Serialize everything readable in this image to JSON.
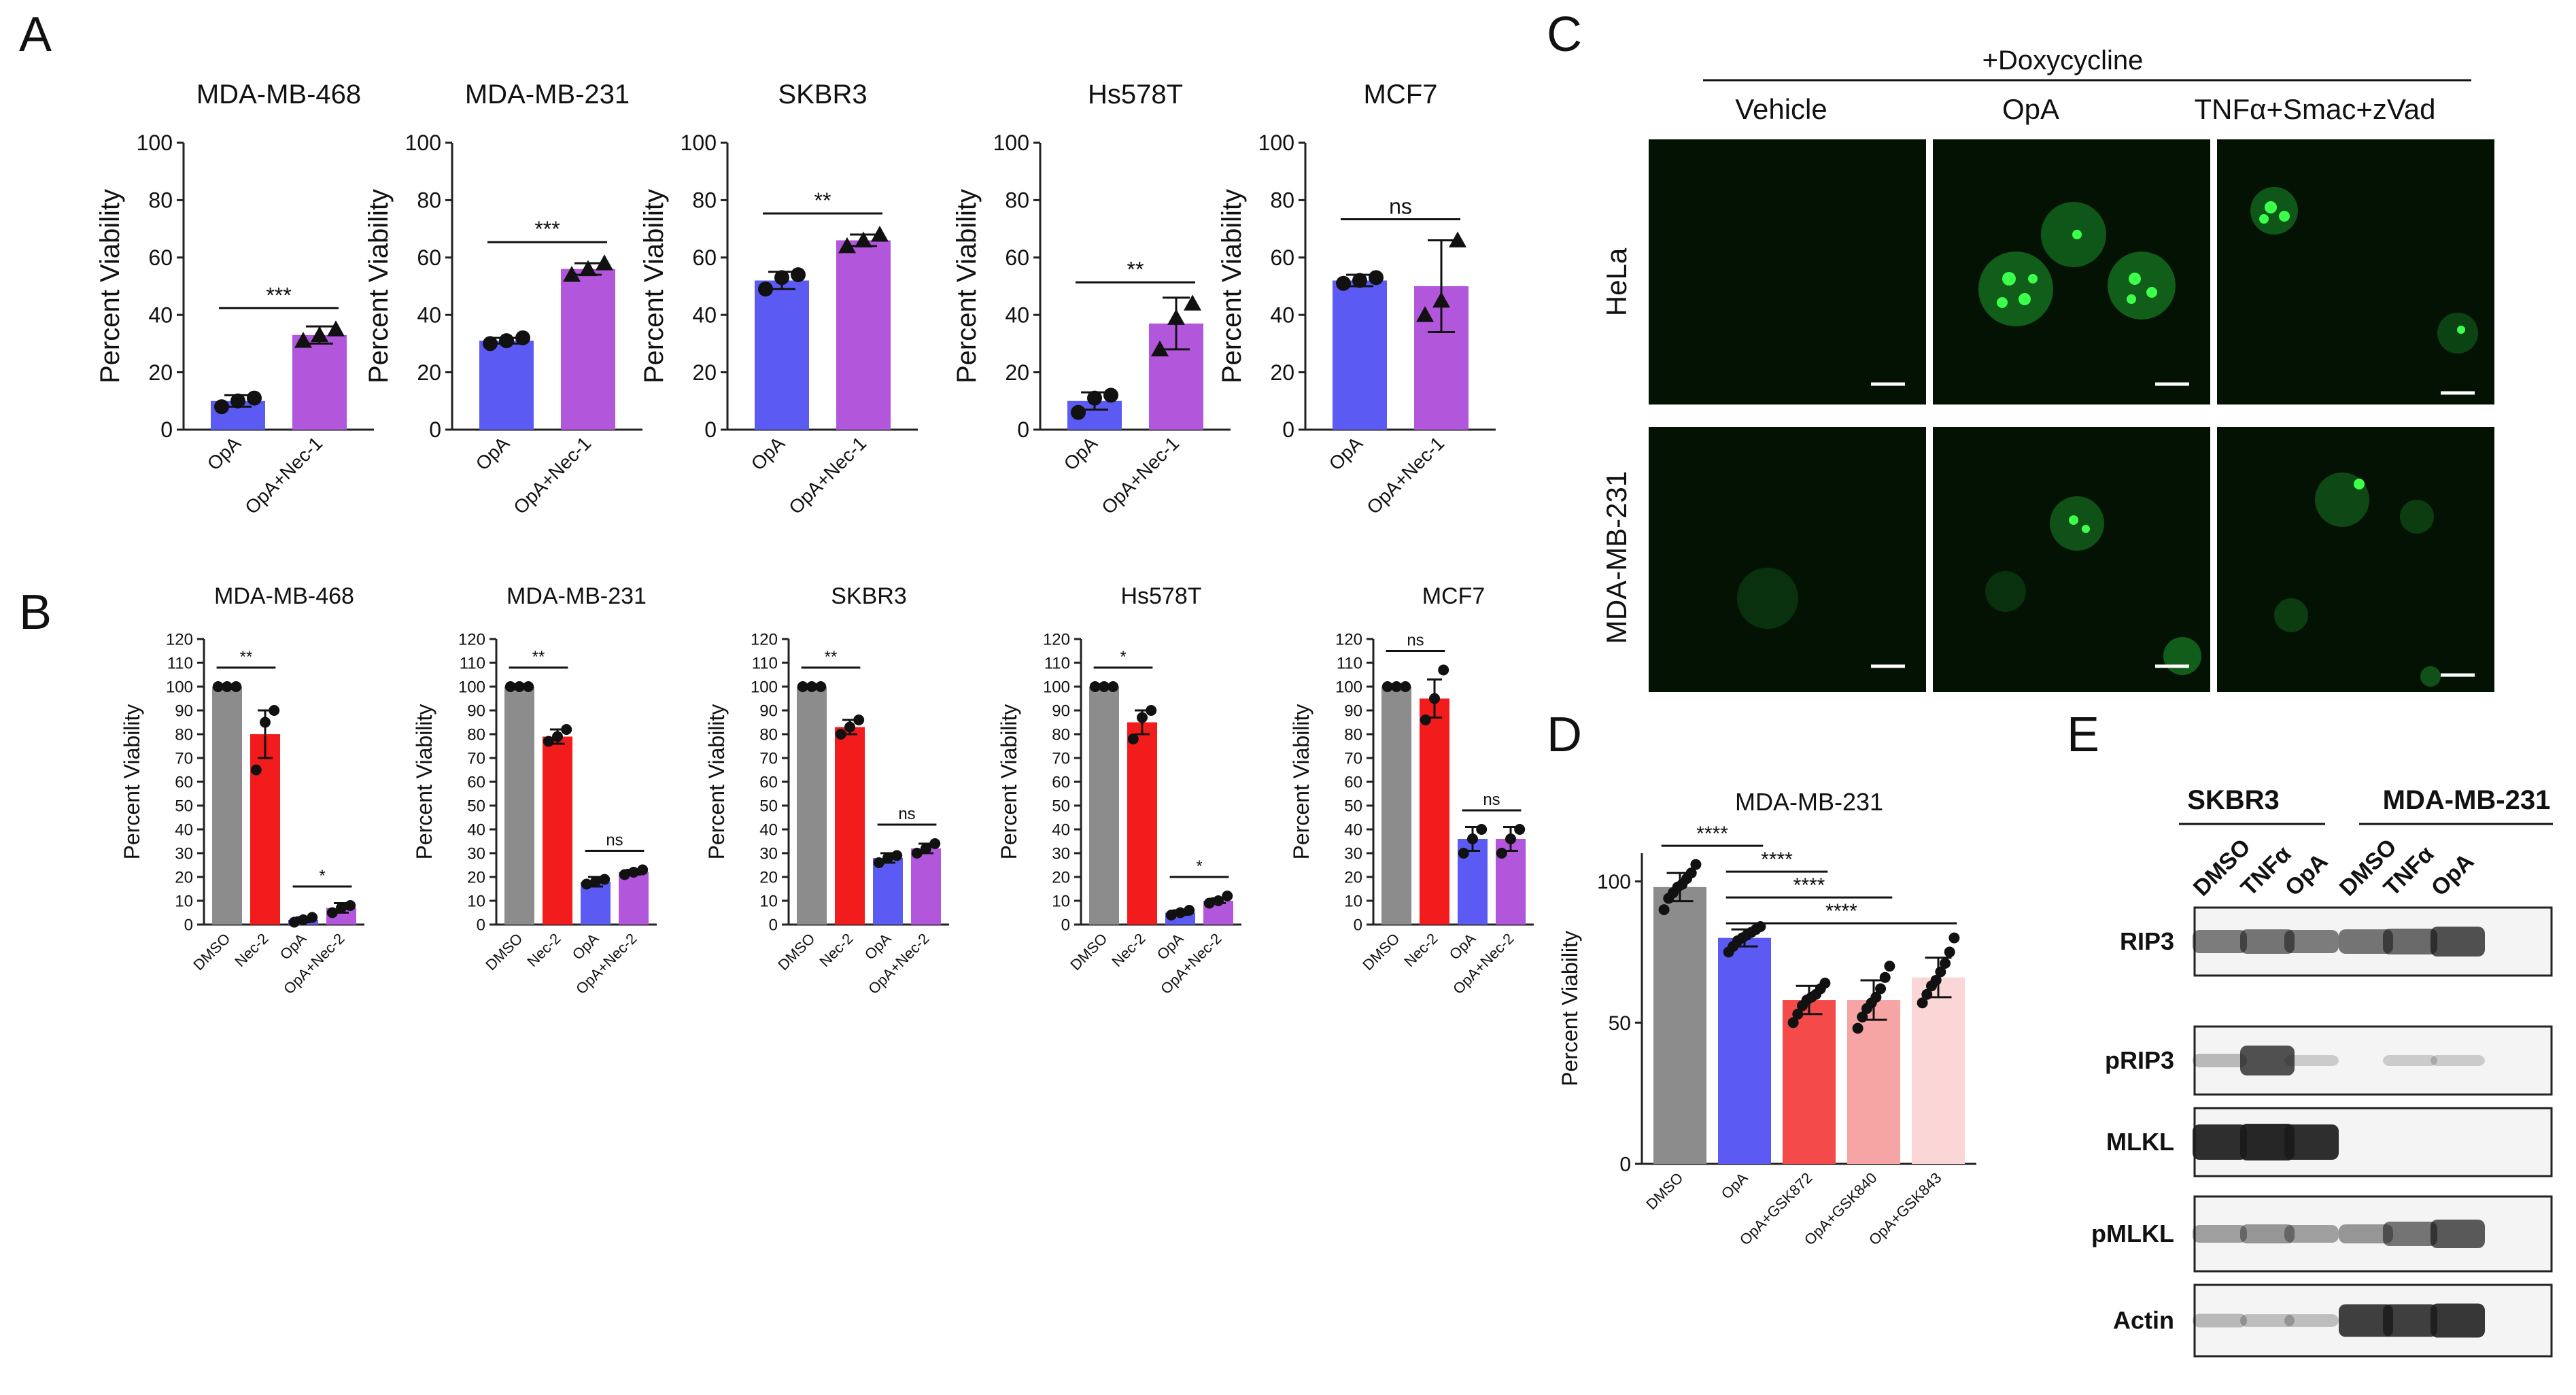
{
  "colors": {
    "gray": "#8c8c8c",
    "blue": "#5b5bf4",
    "purple": "#b257dc",
    "red": "#f21c1c",
    "red2": "#f54a4a",
    "pink": "#f7a4a4",
    "lightpink": "#fbd6d6",
    "green": "#1fd43a"
  },
  "panel_letters": [
    "A",
    "B",
    "C",
    "D",
    "E"
  ],
  "chart_data": [
    {
      "panel": "A",
      "type": "bar",
      "title": "MDA-MB-468",
      "ylabel": "Percent Viability",
      "categories": [
        "OpA",
        "OpA+Nec-1"
      ],
      "values": [
        10,
        33
      ],
      "errors": [
        2,
        3
      ],
      "points": [
        [
          8,
          10,
          11
        ],
        [
          31,
          33,
          35
        ]
      ],
      "ylim": [
        0,
        100
      ],
      "yticks": [
        0,
        20,
        40,
        60,
        80,
        100
      ],
      "sig": [
        "***"
      ],
      "pairs": [
        [
          0,
          1
        ]
      ],
      "colors": [
        "blue",
        "purple"
      ],
      "markers": [
        "circle",
        "triangle"
      ]
    },
    {
      "panel": "A",
      "type": "bar",
      "title": "MDA-MB-231",
      "ylabel": "Percent Viability",
      "categories": [
        "OpA",
        "OpA+Nec-1"
      ],
      "values": [
        31,
        56
      ],
      "errors": [
        1,
        2
      ],
      "points": [
        [
          30,
          31,
          32
        ],
        [
          54,
          56,
          58
        ]
      ],
      "ylim": [
        0,
        100
      ],
      "yticks": [
        0,
        20,
        40,
        60,
        80,
        100
      ],
      "sig": [
        "***"
      ],
      "pairs": [
        [
          0,
          1
        ]
      ],
      "colors": [
        "blue",
        "purple"
      ],
      "markers": [
        "circle",
        "triangle"
      ]
    },
    {
      "panel": "A",
      "type": "bar",
      "title": "SKBR3",
      "ylabel": "Percent Viability",
      "categories": [
        "OpA",
        "OpA+Nec-1"
      ],
      "values": [
        52,
        66
      ],
      "errors": [
        3,
        2
      ],
      "points": [
        [
          49,
          53,
          54
        ],
        [
          64,
          66,
          68
        ]
      ],
      "ylim": [
        0,
        100
      ],
      "yticks": [
        0,
        20,
        40,
        60,
        80,
        100
      ],
      "sig": [
        "**"
      ],
      "pairs": [
        [
          0,
          1
        ]
      ],
      "colors": [
        "blue",
        "purple"
      ],
      "markers": [
        "circle",
        "triangle"
      ]
    },
    {
      "panel": "A",
      "type": "bar",
      "title": "Hs578T",
      "ylabel": "Percent Viability",
      "categories": [
        "OpA",
        "OpA+Nec-1"
      ],
      "values": [
        10,
        37
      ],
      "errors": [
        3,
        9
      ],
      "points": [
        [
          6,
          11,
          12
        ],
        [
          28,
          39,
          44
        ]
      ],
      "ylim": [
        0,
        100
      ],
      "yticks": [
        0,
        20,
        40,
        60,
        80,
        100
      ],
      "sig": [
        "**"
      ],
      "pairs": [
        [
          0,
          1
        ]
      ],
      "colors": [
        "blue",
        "purple"
      ],
      "markers": [
        "circle",
        "triangle"
      ]
    },
    {
      "panel": "A",
      "type": "bar",
      "title": "MCF7",
      "ylabel": "Percent Viability",
      "categories": [
        "OpA",
        "OpA+Nec-1"
      ],
      "values": [
        52,
        50
      ],
      "errors": [
        2,
        16
      ],
      "points": [
        [
          51,
          52,
          53
        ],
        [
          40,
          45,
          66
        ]
      ],
      "ylim": [
        0,
        100
      ],
      "yticks": [
        0,
        20,
        40,
        60,
        80,
        100
      ],
      "sig": [
        "ns"
      ],
      "pairs": [
        [
          0,
          1
        ]
      ],
      "colors": [
        "blue",
        "purple"
      ],
      "markers": [
        "circle",
        "triangle"
      ]
    },
    {
      "panel": "B",
      "type": "bar",
      "title": "MDA-MB-468",
      "ylabel": "Percent Viability",
      "categories": [
        "DMSO",
        "Nec-2",
        "OpA",
        "OpA+Nec-2"
      ],
      "values": [
        100,
        80,
        2,
        7
      ],
      "errors": [
        0,
        10,
        1,
        2
      ],
      "points": [
        [
          100,
          100,
          100
        ],
        [
          65,
          85,
          90
        ],
        [
          1,
          2,
          3
        ],
        [
          5,
          7,
          8
        ]
      ],
      "ylim": [
        0,
        120
      ],
      "yticks": [
        0,
        10,
        20,
        30,
        40,
        50,
        60,
        70,
        80,
        90,
        100,
        110,
        120
      ],
      "sig": [
        "**",
        "*"
      ],
      "pairs": [
        [
          0,
          1
        ],
        [
          2,
          3
        ]
      ],
      "colors": [
        "gray",
        "red",
        "blue",
        "purple"
      ]
    },
    {
      "panel": "B",
      "type": "bar",
      "title": "MDA-MB-231",
      "ylabel": "Percent Viability",
      "categories": [
        "DMSO",
        "Nec-2",
        "OpA",
        "OpA+Nec-2"
      ],
      "values": [
        100,
        79,
        18,
        22
      ],
      "errors": [
        0,
        3,
        2,
        1
      ],
      "points": [
        [
          100,
          100,
          100
        ],
        [
          77,
          79,
          82
        ],
        [
          17,
          18,
          19
        ],
        [
          21,
          22,
          23
        ]
      ],
      "ylim": [
        0,
        120
      ],
      "yticks": [
        0,
        10,
        20,
        30,
        40,
        50,
        60,
        70,
        80,
        90,
        100,
        110,
        120
      ],
      "sig": [
        "**",
        "ns"
      ],
      "pairs": [
        [
          0,
          1
        ],
        [
          2,
          3
        ]
      ],
      "colors": [
        "gray",
        "red",
        "blue",
        "purple"
      ]
    },
    {
      "panel": "B",
      "type": "bar",
      "title": "SKBR3",
      "ylabel": "Percent Viability",
      "categories": [
        "DMSO",
        "Nec-2",
        "OpA",
        "OpA+Nec-2"
      ],
      "values": [
        100,
        83,
        28,
        32
      ],
      "errors": [
        0,
        3,
        2,
        2
      ],
      "points": [
        [
          100,
          100,
          100
        ],
        [
          80,
          83,
          86
        ],
        [
          26,
          28,
          29
        ],
        [
          30,
          32,
          34
        ]
      ],
      "ylim": [
        0,
        120
      ],
      "yticks": [
        0,
        10,
        20,
        30,
        40,
        50,
        60,
        70,
        80,
        90,
        100,
        110,
        120
      ],
      "sig": [
        "**",
        "ns"
      ],
      "pairs": [
        [
          0,
          1
        ],
        [
          2,
          3
        ]
      ],
      "colors": [
        "gray",
        "red",
        "blue",
        "purple"
      ]
    },
    {
      "panel": "B",
      "type": "bar",
      "title": "Hs578T",
      "ylabel": "Percent Viability",
      "categories": [
        "DMSO",
        "Nec-2",
        "OpA",
        "OpA+Nec-2"
      ],
      "values": [
        100,
        85,
        5,
        10
      ],
      "errors": [
        0,
        5,
        1,
        1
      ],
      "points": [
        [
          100,
          100,
          100
        ],
        [
          78,
          87,
          90
        ],
        [
          4,
          5,
          6
        ],
        [
          9,
          10,
          12
        ]
      ],
      "ylim": [
        0,
        120
      ],
      "yticks": [
        0,
        10,
        20,
        30,
        40,
        50,
        60,
        70,
        80,
        90,
        100,
        110,
        120
      ],
      "sig": [
        "*",
        "*"
      ],
      "pairs": [
        [
          0,
          1
        ],
        [
          2,
          3
        ]
      ],
      "colors": [
        "gray",
        "red",
        "blue",
        "purple"
      ]
    },
    {
      "panel": "B",
      "type": "bar",
      "title": "MCF7",
      "ylabel": "Percent Viability",
      "categories": [
        "DMSO",
        "Nec-2",
        "OpA",
        "OpA+Nec-2"
      ],
      "values": [
        100,
        95,
        36,
        36
      ],
      "errors": [
        0,
        8,
        5,
        5
      ],
      "points": [
        [
          100,
          100,
          100
        ],
        [
          86,
          95,
          107
        ],
        [
          30,
          36,
          40
        ],
        [
          30,
          36,
          40
        ]
      ],
      "ylim": [
        0,
        120
      ],
      "yticks": [
        0,
        10,
        20,
        30,
        40,
        50,
        60,
        70,
        80,
        90,
        100,
        110,
        120
      ],
      "sig": [
        "ns",
        "ns"
      ],
      "pairs": [
        [
          0,
          1
        ],
        [
          2,
          3
        ]
      ],
      "colors": [
        "gray",
        "red",
        "blue",
        "purple"
      ]
    },
    {
      "panel": "D",
      "type": "bar",
      "title": "MDA-MB-231",
      "ylabel": "Percent Viability",
      "categories": [
        "DMSO",
        "OpA",
        "OpA+GSK872",
        "OpA+GSK840",
        "OpA+GSK843"
      ],
      "values": [
        98,
        80,
        58,
        58,
        66
      ],
      "errors": [
        5,
        3,
        5,
        7,
        7
      ],
      "points": [
        [
          90,
          94,
          96,
          98,
          99,
          101,
          103,
          106
        ],
        [
          75,
          77,
          79,
          80,
          81,
          82,
          83,
          84
        ],
        [
          50,
          53,
          56,
          58,
          59,
          60,
          62,
          64
        ],
        [
          48,
          52,
          55,
          57,
          59,
          62,
          66,
          70
        ],
        [
          57,
          60,
          63,
          65,
          68,
          71,
          75,
          80
        ]
      ],
      "ylim": [
        0,
        110
      ],
      "yticks": [
        0,
        50,
        100
      ],
      "sig": [
        "****",
        "****",
        "****",
        "****"
      ],
      "pairs": [
        [
          0,
          1
        ],
        [
          1,
          2
        ],
        [
          1,
          3
        ],
        [
          1,
          4
        ]
      ],
      "colors": [
        "gray",
        "blue",
        "red2",
        "pink",
        "lightpink"
      ]
    }
  ],
  "panel_c": {
    "header": "+Doxycycline",
    "columns": [
      "Vehicle",
      "OpA",
      "TNFα+Smac+zVad"
    ],
    "rows": [
      "HeLa",
      "MDA-MB-231"
    ]
  },
  "panel_e": {
    "groups": [
      "SKBR3",
      "MDA-MB-231"
    ],
    "lanes": [
      "DMSO",
      "TNFα",
      "OpA",
      "DMSO",
      "TNFα",
      "OpA"
    ],
    "bands": [
      "RIP3",
      "pRIP3",
      "MLKL",
      "pMLKL",
      "Actin"
    ],
    "intensity": [
      [
        0.5,
        0.55,
        0.5,
        0.55,
        0.6,
        0.75
      ],
      [
        0.15,
        0.75,
        0.05,
        0.0,
        0.05,
        0.05
      ],
      [
        0.95,
        1.0,
        0.95,
        0.0,
        0.0,
        0.0
      ],
      [
        0.3,
        0.35,
        0.3,
        0.35,
        0.55,
        0.7
      ],
      [
        0.15,
        0.12,
        0.12,
        0.85,
        0.85,
        0.9
      ]
    ]
  }
}
